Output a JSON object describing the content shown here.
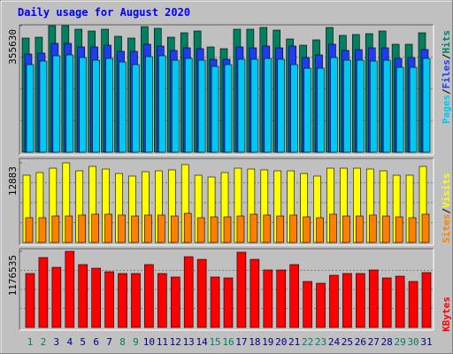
{
  "title": "Daily usage for August 2020",
  "separator": "/",
  "chart_data": [
    {
      "type": "bar",
      "ylim": [
        0,
        355630
      ],
      "yticks": [
        355630
      ],
      "series": [
        {
          "name": "Hits",
          "color": "#008060",
          "values": [
            320800,
            323300,
            355630,
            355630,
            345700,
            340700,
            345700,
            325800,
            320800,
            353100,
            348200,
            323300,
            335700,
            340700,
            295900,
            291000,
            345700,
            345700,
            350600,
            343200,
            318300,
            300900,
            315800,
            350600,
            328300,
            330800,
            333200,
            340700,
            303400,
            303400,
            335700
          ]
        },
        {
          "name": "Files",
          "color": "#1e3cf0",
          "values": [
            276000,
            278500,
            305900,
            305900,
            295900,
            295900,
            300900,
            283500,
            283500,
            303400,
            298400,
            286000,
            293400,
            291000,
            261100,
            261100,
            295900,
            293400,
            298400,
            293400,
            298400,
            266100,
            273500,
            303400,
            286000,
            288400,
            293400,
            293400,
            263600,
            266100,
            288400
          ]
        },
        {
          "name": "Pages",
          "color": "#00c8f0",
          "values": [
            246200,
            256100,
            271100,
            273500,
            266100,
            258600,
            263600,
            253600,
            246200,
            268600,
            271100,
            258600,
            263600,
            258600,
            241100,
            246200,
            261100,
            261100,
            263600,
            261100,
            246200,
            236100,
            236100,
            266100,
            258600,
            258600,
            256100,
            258600,
            238600,
            238600,
            263600
          ]
        }
      ]
    },
    {
      "type": "bar",
      "ylim": [
        0,
        12883
      ],
      "yticks": [
        12883
      ],
      "series": [
        {
          "name": "Visits",
          "color": "#ffff00",
          "values": [
            10880,
            11310,
            12020,
            12883,
            11590,
            12310,
            11880,
            11160,
            10740,
            11450,
            11590,
            11740,
            12600,
            10880,
            10590,
            11310,
            12020,
            11880,
            11740,
            11590,
            11590,
            11160,
            10740,
            12020,
            12020,
            12020,
            11880,
            11590,
            10880,
            10880,
            12310
          ]
        },
        {
          "name": "Sites",
          "color": "#ff8000",
          "values": [
            4010,
            4010,
            4290,
            4290,
            4440,
            4580,
            4580,
            4440,
            4290,
            4440,
            4440,
            4290,
            4720,
            4010,
            4150,
            4150,
            4290,
            4580,
            4440,
            4290,
            4440,
            4150,
            4010,
            4580,
            4290,
            4290,
            4440,
            4290,
            4150,
            4010,
            4580
          ]
        }
      ]
    },
    {
      "type": "bar",
      "ylim": [
        0,
        1176535
      ],
      "yticks": [
        1176535
      ],
      "categories": [
        "1",
        "2",
        "3",
        "4",
        "5",
        "6",
        "7",
        "8",
        "9",
        "10",
        "11",
        "12",
        "13",
        "14",
        "15",
        "16",
        "17",
        "18",
        "19",
        "20",
        "21",
        "22",
        "23",
        "24",
        "25",
        "26",
        "27",
        "28",
        "29",
        "30",
        "31"
      ],
      "category_colors": [
        "#008060",
        "#008060",
        "#000080",
        "#000080",
        "#000080",
        "#000080",
        "#000080",
        "#008060",
        "#008060",
        "#000080",
        "#000080",
        "#000080",
        "#000080",
        "#000080",
        "#008060",
        "#008060",
        "#000080",
        "#000080",
        "#000080",
        "#000080",
        "#000080",
        "#008060",
        "#008060",
        "#000080",
        "#000080",
        "#000080",
        "#000080",
        "#000080",
        "#008060",
        "#008060",
        "#000080"
      ],
      "series": [
        {
          "name": "KBytes",
          "color": "#ff0000",
          "values": [
            834000,
            1081000,
            930000,
            1176535,
            972000,
            916000,
            862000,
            834000,
            834000,
            972000,
            834000,
            780000,
            1094000,
            1053000,
            780000,
            766000,
            1163000,
            1053000,
            889000,
            889000,
            972000,
            711000,
            684000,
            807000,
            834000,
            834000,
            889000,
            766000,
            793000,
            711000,
            848000
          ]
        }
      ]
    }
  ]
}
